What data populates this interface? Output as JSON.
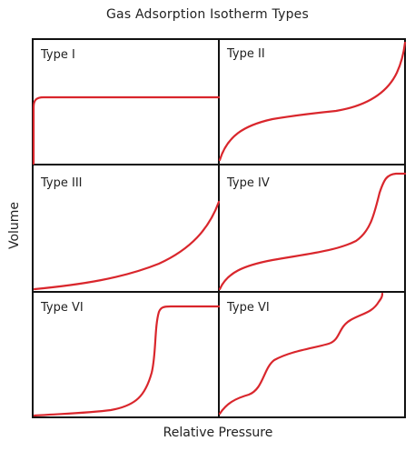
{
  "figure": {
    "title": "Gas Adsorption Isotherm Types",
    "x_axis_label": "Relative Pressure",
    "y_axis_label": "Volume"
  },
  "colors": {
    "curve": "#d9262c",
    "frame": "#111111"
  },
  "panels": [
    {
      "label": "Type I"
    },
    {
      "label": "Type II"
    },
    {
      "label": "Type III"
    },
    {
      "label": "Type IV"
    },
    {
      "label": "Type VI"
    },
    {
      "label": "Type VI"
    }
  ]
}
